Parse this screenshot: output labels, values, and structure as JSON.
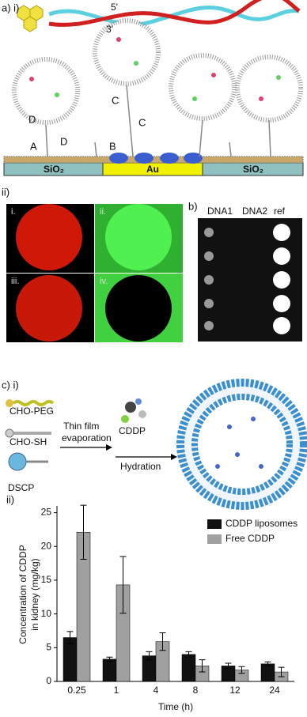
{
  "panel_a": {
    "label": "a) i)",
    "strand_labels": [
      "5'",
      "3'"
    ],
    "linker_labels": [
      "D",
      "A",
      "D",
      "C",
      "C",
      "B"
    ],
    "substrate_labels": [
      "SiO₂",
      "Au",
      "SiO₂"
    ],
    "sub_label": "ii)",
    "image_labels": [
      "i.",
      "ii.",
      "iii.",
      "iv."
    ]
  },
  "panel_b": {
    "label": "b)",
    "column_labels": [
      "DNA1",
      "DNA2",
      "ref"
    ]
  },
  "panel_c": {
    "label": "c) i)",
    "components": [
      "CHO-PEG",
      "CHO-SH",
      "DSCP"
    ],
    "step1": [
      "Thin film",
      "evaporation"
    ],
    "drug": "CDDP",
    "step2": "Hydration",
    "sub_label": "ii)"
  },
  "chart_data": {
    "type": "bar",
    "xlabel": "Time (h)",
    "ylabel": [
      "Concentration of CDDP",
      "in kidney (mg/kg)"
    ],
    "categories": [
      "0.25",
      "1",
      "4",
      "8",
      "12",
      "24"
    ],
    "series": [
      {
        "name": "CDDP liposomes",
        "color": "#111111",
        "values": [
          6.5,
          3.3,
          3.8,
          4.0,
          2.3,
          2.6
        ],
        "errors": [
          0.9,
          0.3,
          0.6,
          0.4,
          0.4,
          0.3
        ]
      },
      {
        "name": "Free CDDP",
        "color": "#a0a0a0",
        "values": [
          22.1,
          14.3,
          5.9,
          2.3,
          1.7,
          1.4
        ],
        "errors": [
          4.0,
          4.2,
          1.3,
          0.9,
          0.5,
          0.7
        ]
      }
    ],
    "ylim": [
      0,
      26
    ],
    "yticks": [
      0,
      5,
      10,
      15,
      20,
      25
    ],
    "legend": "upper right"
  }
}
